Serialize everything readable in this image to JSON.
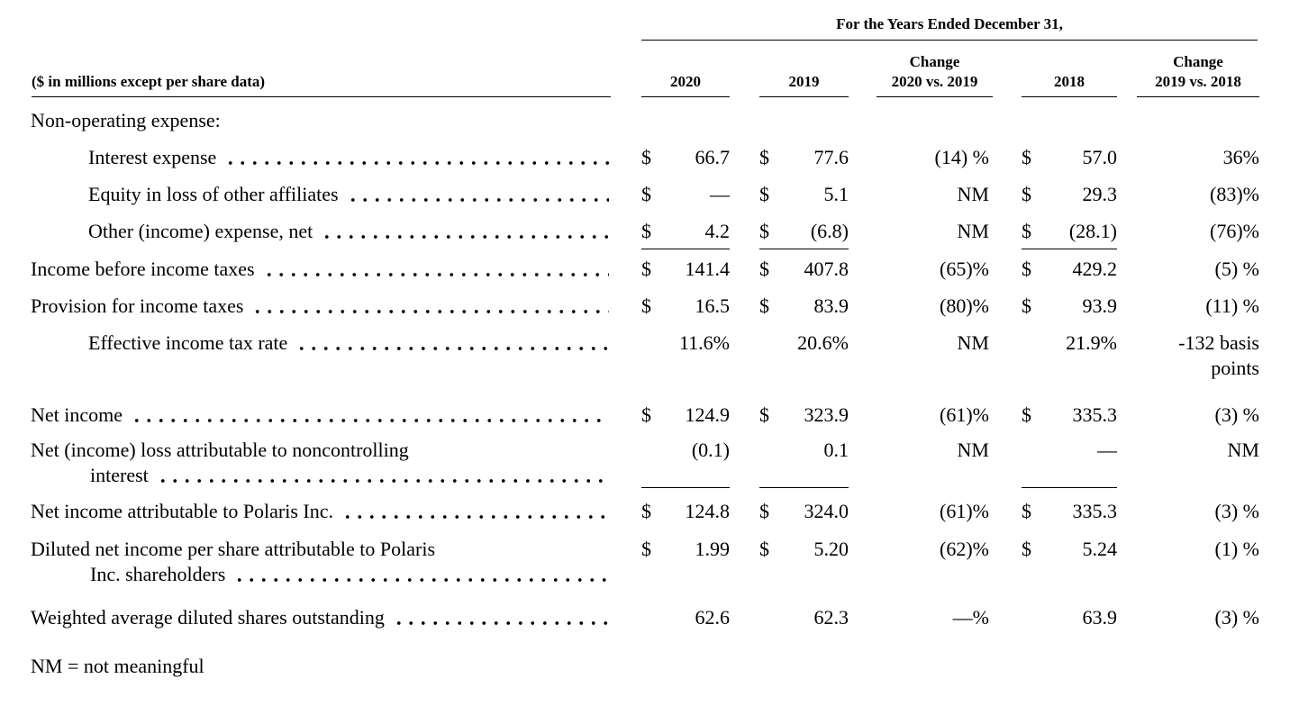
{
  "header": {
    "period": "For the Years Ended December 31,",
    "unit_note": "($ in millions except per share data)",
    "col_2020": "2020",
    "col_2019": "2019",
    "col_chg1_top": "Change",
    "col_chg1_bottom": "2020 vs. 2019",
    "col_2018": "2018",
    "col_chg2_top": "Change",
    "col_chg2_bottom": "2019 vs. 2018"
  },
  "rows": [
    {
      "label": "Non-operating expense:"
    },
    {
      "label": "Interest expense",
      "v2020": {
        "sym": "$",
        "val": "66.7"
      },
      "v2019": {
        "sym": "$",
        "val": "77.6"
      },
      "chg1": "(14) %",
      "v2018": {
        "sym": "$",
        "val": "57.0"
      },
      "chg2": "36%"
    },
    {
      "label": "Equity in loss of other affiliates",
      "v2020": {
        "sym": "$",
        "val": "—"
      },
      "v2019": {
        "sym": "$",
        "val": "5.1"
      },
      "chg1": "NM",
      "v2018": {
        "sym": "$",
        "val": "29.3"
      },
      "chg2": "(83)%"
    },
    {
      "label": "Other (income) expense, net",
      "v2020": {
        "sym": "$",
        "val": "4.2"
      },
      "v2019": {
        "sym": "$",
        "val": "(6.8)"
      },
      "chg1": "NM",
      "v2018": {
        "sym": "$",
        "val": "(28.1)"
      },
      "chg2": "(76)%"
    },
    {
      "label": "Income before income taxes",
      "v2020": {
        "sym": "$",
        "val": "141.4"
      },
      "v2019": {
        "sym": "$",
        "val": "407.8"
      },
      "chg1": "(65)%",
      "v2018": {
        "sym": "$",
        "val": "429.2"
      },
      "chg2": "(5) %"
    },
    {
      "label": "Provision for income taxes",
      "v2020": {
        "sym": "$",
        "val": "16.5"
      },
      "v2019": {
        "sym": "$",
        "val": "83.9"
      },
      "chg1": "(80)%",
      "v2018": {
        "sym": "$",
        "val": "93.9"
      },
      "chg2": "(11) %"
    },
    {
      "label": "Effective income tax rate",
      "v2020": {
        "sym": "",
        "val": "11.6%"
      },
      "v2019": {
        "sym": "",
        "val": "20.6%"
      },
      "chg1": "NM",
      "v2018": {
        "sym": "",
        "val": "21.9%"
      },
      "chg2": "-132 basis points"
    },
    {
      "label": "Net income",
      "v2020": {
        "sym": "$",
        "val": "124.9"
      },
      "v2019": {
        "sym": "$",
        "val": "323.9"
      },
      "chg1": "(61)%",
      "v2018": {
        "sym": "$",
        "val": "335.3"
      },
      "chg2": "(3) %"
    },
    {
      "label": "Net (income) loss attributable to noncontrolling",
      "label2": "interest",
      "v2020": {
        "sym": "",
        "val": "(0.1)"
      },
      "v2019": {
        "sym": "",
        "val": "0.1"
      },
      "chg1": "NM",
      "v2018": {
        "sym": "",
        "val": "—"
      },
      "chg2": "NM"
    },
    {
      "label": "Net income attributable to Polaris Inc.",
      "v2020": {
        "sym": "$",
        "val": "124.8"
      },
      "v2019": {
        "sym": "$",
        "val": "324.0"
      },
      "chg1": "(61)%",
      "v2018": {
        "sym": "$",
        "val": "335.3"
      },
      "chg2": "(3) %"
    },
    {
      "label": "Diluted net income per share attributable to Polaris",
      "label2": "Inc. shareholders",
      "v2020": {
        "sym": "$",
        "val": "1.99"
      },
      "v2019": {
        "sym": "$",
        "val": "5.20"
      },
      "chg1": "(62)%",
      "v2018": {
        "sym": "$",
        "val": "5.24"
      },
      "chg2": "(1) %"
    },
    {
      "label": "Weighted average diluted shares outstanding",
      "v2020": {
        "sym": "",
        "val": "62.6"
      },
      "v2019": {
        "sym": "",
        "val": "62.3"
      },
      "chg1": "—%",
      "v2018": {
        "sym": "",
        "val": "63.9"
      },
      "chg2": "(3) %"
    }
  ],
  "footnote": "NM = not meaningful",
  "colors": {
    "text": "#000000",
    "background": "#ffffff"
  }
}
